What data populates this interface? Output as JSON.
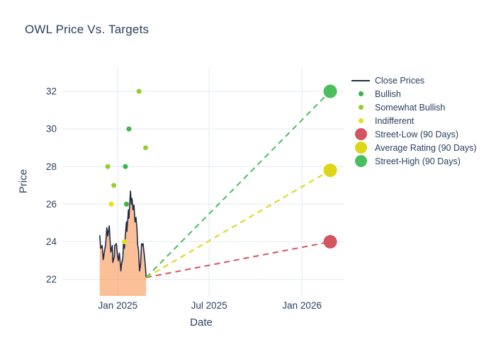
{
  "title": "OWL Price Vs. Targets",
  "colors": {
    "text": "#2a3f5f",
    "grid": "#e8edf5",
    "close_line": "#1f2a44",
    "close_fill": "rgba(250,140,70,0.55)",
    "bullish": "#3cb54a",
    "somewhat_bullish": "#93ce30",
    "indifferent": "#e7e116",
    "street_low": "#d25460",
    "average_rating": "#ddd616",
    "street_high": "#4abd5e"
  },
  "legend": {
    "items": [
      {
        "label": "Close Prices",
        "swatch": "line",
        "color_key": "close_line"
      },
      {
        "label": "Bullish",
        "swatch": "dot-small",
        "color_key": "bullish"
      },
      {
        "label": "Somewhat Bullish",
        "swatch": "dot-small",
        "color_key": "somewhat_bullish"
      },
      {
        "label": "Indifferent",
        "swatch": "dot-small",
        "color_key": "indifferent"
      },
      {
        "label": "Street-Low (90 Days)",
        "swatch": "dot-large",
        "color_key": "street_low"
      },
      {
        "label": "Average Rating (90 Days)",
        "swatch": "dot-large",
        "color_key": "average_rating"
      },
      {
        "label": "Street-High (90 Days)",
        "swatch": "dot-large",
        "color_key": "street_high"
      }
    ]
  },
  "chart_data": {
    "type": "line",
    "title": "OWL Price Vs. Targets",
    "xlabel": "Date",
    "ylabel": "Price",
    "x_unit": "days_from_2025-01-01",
    "x_range": [
      -110,
      449
    ],
    "y_range": [
      21.12,
      33.28
    ],
    "x_ticks": [
      {
        "day": 0,
        "label": "Jan 2025"
      },
      {
        "day": 181,
        "label": "Jul 2025"
      },
      {
        "day": 365,
        "label": "Jan 2026"
      }
    ],
    "y_ticks": [
      "22",
      "24",
      "26",
      "28",
      "30",
      "32"
    ],
    "y_tick_values": [
      22,
      24,
      26,
      28,
      30,
      32
    ],
    "grid": true,
    "legend_position": "right",
    "series": [
      {
        "name": "Close Prices",
        "type": "line-area",
        "days": [
          -36,
          -34,
          -31,
          -29,
          -27,
          -24,
          -22,
          -20,
          -17,
          -15,
          -14,
          -11,
          -10,
          -7,
          -6,
          -3,
          -1,
          1,
          3,
          6,
          7,
          10,
          11,
          13,
          15,
          17,
          18,
          21,
          22,
          25,
          27,
          28,
          30,
          32,
          34,
          36,
          38,
          39,
          41,
          43,
          45,
          47,
          49,
          50,
          53,
          55,
          56
        ],
        "values": [
          24.35,
          23.65,
          23.8,
          23.05,
          23.4,
          23.9,
          24.75,
          24.3,
          24.85,
          23.9,
          23.45,
          23.8,
          22.9,
          23.2,
          23.8,
          23.9,
          23.35,
          23.0,
          23.4,
          22.45,
          22.75,
          23.15,
          23.9,
          23.65,
          24.4,
          25.05,
          24.55,
          25.7,
          25.25,
          26.7,
          26.0,
          26.3,
          25.7,
          25.95,
          25.05,
          25.3,
          24.65,
          23.9,
          23.55,
          22.45,
          22.8,
          23.9,
          23.8,
          23.9,
          23.15,
          22.55,
          22.1
        ]
      }
    ],
    "ratings": [
      {
        "day": -20,
        "price": 28,
        "category": "somewhat_bullish"
      },
      {
        "day": -13,
        "price": 26,
        "category": "indifferent"
      },
      {
        "day": -8,
        "price": 27,
        "category": "somewhat_bullish"
      },
      {
        "day": 13,
        "price": 24,
        "category": "indifferent"
      },
      {
        "day": 15,
        "price": 28,
        "category": "bullish"
      },
      {
        "day": 17,
        "price": 26,
        "category": "bullish"
      },
      {
        "day": 22,
        "price": 30,
        "category": "bullish"
      },
      {
        "day": 42,
        "price": 32,
        "category": "somewhat_bullish"
      },
      {
        "day": 55,
        "price": 29,
        "category": "somewhat_bullish"
      }
    ],
    "targets": {
      "day": 421,
      "street_low": 24,
      "average_rating": 27.8,
      "street_high": 32
    },
    "projection_origin": {
      "day": 56,
      "price": 22.1
    }
  }
}
